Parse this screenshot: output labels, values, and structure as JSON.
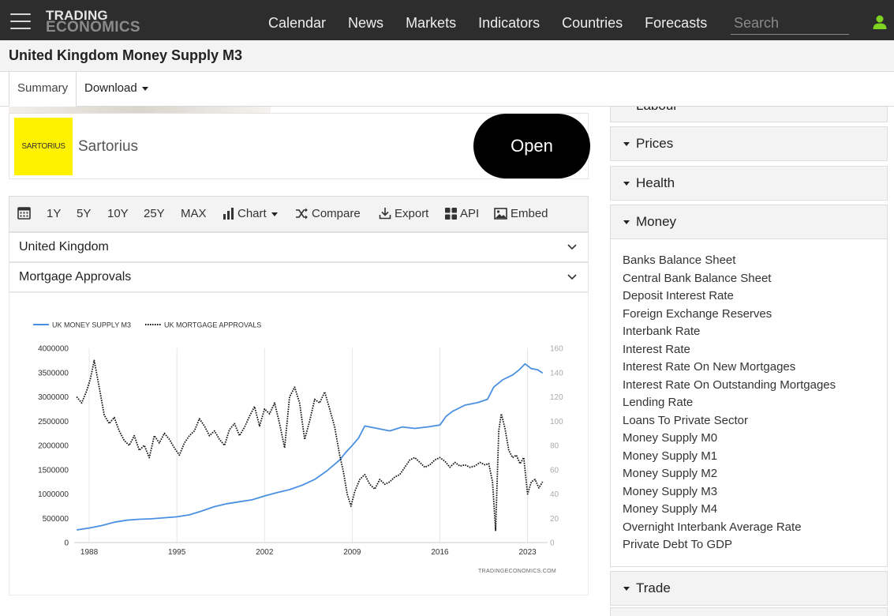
{
  "header": {
    "logo_line1": "TRADING",
    "logo_line2": "ECONOMICS",
    "nav": [
      "Calendar",
      "News",
      "Markets",
      "Indicators",
      "Countries",
      "Forecasts"
    ],
    "search_placeholder": "Search"
  },
  "page": {
    "title": "United Kingdom Money Supply M3",
    "tabs": {
      "summary": "Summary",
      "download": "Download"
    }
  },
  "ad": {
    "logo_text": "SARTORIUS",
    "name": "Sartorius",
    "button": "Open"
  },
  "toolbar": {
    "ranges": [
      "1Y",
      "5Y",
      "10Y",
      "25Y",
      "MAX"
    ],
    "chart": "Chart",
    "compare": "Compare",
    "export": "Export",
    "api": "API",
    "embed": "Embed"
  },
  "selectors": {
    "country": "United Kingdom",
    "compare_indicator": "Mortgage Approvals"
  },
  "chart_data": {
    "type": "line",
    "legend": [
      "UK MONEY SUPPLY M3",
      "UK MORTGAGE APPROVALS"
    ],
    "legend_position": "top-left",
    "x_ticks": [
      "1988",
      "1995",
      "2002",
      "2009",
      "2016",
      "2023"
    ],
    "xlim": [
      1986.8,
      2024.6
    ],
    "y_left": {
      "ylim": [
        0,
        4000000
      ],
      "ticks": [
        "0",
        "500000",
        "1000000",
        "1500000",
        "2000000",
        "2500000",
        "3000000",
        "3500000",
        "4000000"
      ]
    },
    "y_right": {
      "ylim": [
        0,
        160
      ],
      "ticks": [
        "0",
        "20",
        "40",
        "60",
        "80",
        "100",
        "120",
        "140",
        "160"
      ]
    },
    "grid": "vertical",
    "watermark": "TRADINGECONOMICS.COM",
    "series": [
      {
        "name": "UK MONEY SUPPLY M3",
        "color": "#4a90e2",
        "axis": "left",
        "x": [
          1987.0,
          1988.0,
          1989.0,
          1990.0,
          1991.0,
          1992.0,
          1993.0,
          1994.0,
          1995.0,
          1996.0,
          1997.0,
          1998.0,
          1999.0,
          2000.0,
          2001.0,
          2002.0,
          2003.0,
          2004.0,
          2005.0,
          2006.0,
          2007.0,
          2008.0,
          2008.5,
          2009.0,
          2009.5,
          2010.0,
          2011.0,
          2012.0,
          2013.0,
          2014.0,
          2015.0,
          2016.0,
          2016.5,
          2017.0,
          2018.0,
          2019.0,
          2019.8,
          2020.3,
          2021.0,
          2021.8,
          2022.3,
          2022.8,
          2023.3,
          2023.8,
          2024.2
        ],
        "values": [
          260000,
          300000,
          350000,
          420000,
          460000,
          480000,
          490000,
          510000,
          530000,
          570000,
          650000,
          740000,
          800000,
          840000,
          880000,
          960000,
          1030000,
          1090000,
          1180000,
          1300000,
          1480000,
          1700000,
          1860000,
          2000000,
          2150000,
          2400000,
          2350000,
          2300000,
          2380000,
          2350000,
          2380000,
          2420000,
          2600000,
          2700000,
          2830000,
          2880000,
          2950000,
          3200000,
          3350000,
          3450000,
          3550000,
          3680000,
          3580000,
          3560000,
          3490000
        ]
      },
      {
        "name": "UK MORTGAGE APPROVALS",
        "color": "#111111",
        "axis": "right",
        "dashed": true,
        "x": [
          1987.0,
          1987.4,
          1987.8,
          1988.1,
          1988.4,
          1988.8,
          1989.2,
          1989.6,
          1990.0,
          1990.4,
          1990.8,
          1991.2,
          1991.6,
          1992.0,
          1992.4,
          1992.8,
          1993.2,
          1993.6,
          1994.0,
          1994.4,
          1994.8,
          1995.2,
          1995.6,
          1996.0,
          1996.4,
          1996.8,
          1997.2,
          1997.6,
          1998.0,
          1998.4,
          1998.8,
          1999.2,
          1999.6,
          2000.0,
          2000.4,
          2000.8,
          2001.2,
          2001.6,
          2002.0,
          2002.4,
          2002.8,
          2003.2,
          2003.6,
          2004.0,
          2004.4,
          2004.8,
          2005.2,
          2005.6,
          2006.0,
          2006.4,
          2006.8,
          2007.2,
          2007.6,
          2008.0,
          2008.3,
          2008.6,
          2008.9,
          2009.2,
          2009.6,
          2010.0,
          2010.4,
          2010.8,
          2011.2,
          2011.6,
          2012.0,
          2012.4,
          2012.8,
          2013.2,
          2013.6,
          2014.0,
          2014.4,
          2014.8,
          2015.2,
          2015.6,
          2016.0,
          2016.4,
          2016.8,
          2017.2,
          2017.6,
          2018.0,
          2018.4,
          2018.8,
          2019.2,
          2019.6,
          2019.9,
          2020.2,
          2020.45,
          2020.7,
          2020.9,
          2021.2,
          2021.5,
          2021.8,
          2022.1,
          2022.4,
          2022.7,
          2023.0,
          2023.3,
          2023.6,
          2023.9,
          2024.2
        ],
        "values": [
          120,
          115,
          125,
          135,
          150,
          128,
          105,
          98,
          103,
          92,
          84,
          80,
          88,
          76,
          80,
          70,
          88,
          82,
          90,
          85,
          78,
          72,
          82,
          88,
          92,
          102,
          96,
          88,
          92,
          85,
          80,
          93,
          98,
          88,
          95,
          104,
          112,
          96,
          110,
          106,
          115,
          98,
          78,
          120,
          128,
          115,
          85,
          100,
          118,
          115,
          124,
          110,
          95,
          72,
          58,
          40,
          30,
          42,
          52,
          56,
          48,
          44,
          52,
          48,
          50,
          54,
          56,
          62,
          68,
          70,
          66,
          62,
          64,
          68,
          70,
          67,
          62,
          66,
          63,
          64,
          62,
          63,
          66,
          64,
          65,
          50,
          10,
          92,
          106,
          94,
          76,
          70,
          72,
          65,
          70,
          40,
          50,
          52,
          45,
          50
        ]
      }
    ]
  },
  "sidebar": {
    "labour_cut": "Labour",
    "prices": "Prices",
    "health": "Health",
    "money": "Money",
    "trade": "Trade",
    "money_items": [
      "Banks Balance Sheet",
      "Central Bank Balance Sheet",
      "Deposit Interest Rate",
      "Foreign Exchange Reserves",
      "Interbank Rate",
      "Interest Rate",
      "Interest Rate On New Mortgages",
      "Interest Rate On Outstanding Mortgages",
      "Lending Rate",
      "Loans To Private Sector",
      "Money Supply M0",
      "Money Supply M1",
      "Money Supply M2",
      "Money Supply M3",
      "Money Supply M4",
      "Overnight Interbank Average Rate",
      "Private Debt To GDP"
    ]
  }
}
